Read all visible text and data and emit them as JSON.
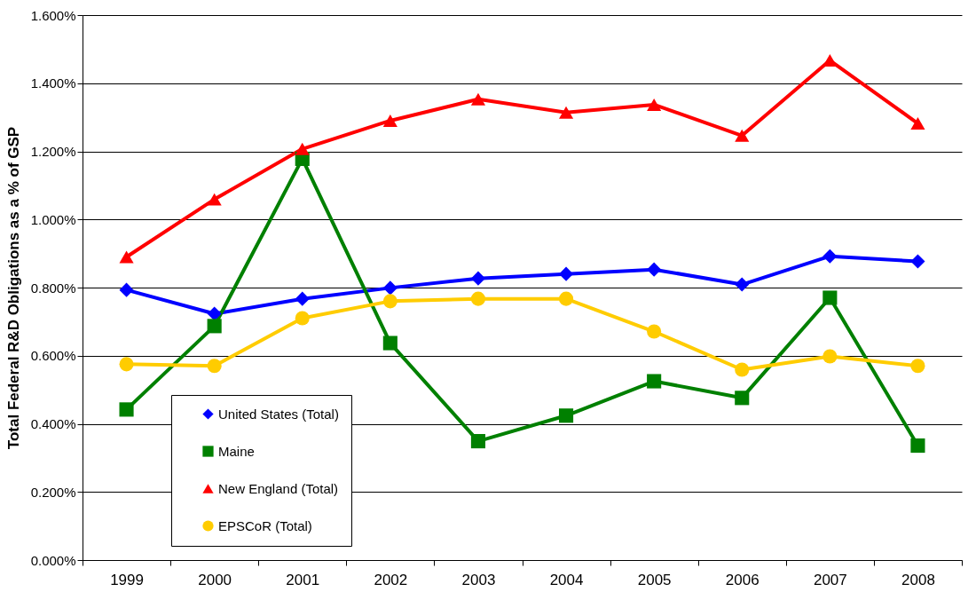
{
  "chart_data": {
    "type": "line",
    "ylabel": "Total Federal R&D Obligations as a % of GSP",
    "categories": [
      "1999",
      "2000",
      "2001",
      "2002",
      "2003",
      "2004",
      "2005",
      "2006",
      "2007",
      "2008"
    ],
    "series": [
      {
        "name": "United States (Total)",
        "color": "#0000ff",
        "marker": "diamond",
        "values": [
          0.793,
          0.723,
          0.767,
          0.799,
          0.827,
          0.84,
          0.853,
          0.809,
          0.892,
          0.877
        ]
      },
      {
        "name": "Maine",
        "color": "#008000",
        "marker": "square",
        "values": [
          0.442,
          0.687,
          1.178,
          0.637,
          0.349,
          0.424,
          0.525,
          0.476,
          0.77,
          0.336
        ]
      },
      {
        "name": "New England (Total)",
        "color": "#ff0000",
        "marker": "triangle",
        "values": [
          0.89,
          1.059,
          1.207,
          1.29,
          1.353,
          1.314,
          1.337,
          1.246,
          1.467,
          1.282
        ]
      },
      {
        "name": "EPSCoR (Total)",
        "color": "#ffcc00",
        "marker": "circle",
        "values": [
          0.575,
          0.57,
          0.71,
          0.76,
          0.767,
          0.767,
          0.671,
          0.559,
          0.598,
          0.57
        ]
      }
    ],
    "ylim": [
      0,
      1.6
    ],
    "yticks": [
      {
        "value": 0,
        "label": "0.000%"
      },
      {
        "value": 0.2,
        "label": "0.200%"
      },
      {
        "value": 0.4,
        "label": "0.400%"
      },
      {
        "value": 0.6,
        "label": "0.600%"
      },
      {
        "value": 0.8,
        "label": "0.800%"
      },
      {
        "value": 1.0,
        "label": "1.000%"
      },
      {
        "value": 1.2,
        "label": "1.200%"
      },
      {
        "value": 1.4,
        "label": "1.400%"
      },
      {
        "value": 1.6,
        "label": "1.600%"
      }
    ],
    "grid": "y",
    "legend": "bottom left",
    "line_style": "solid"
  }
}
